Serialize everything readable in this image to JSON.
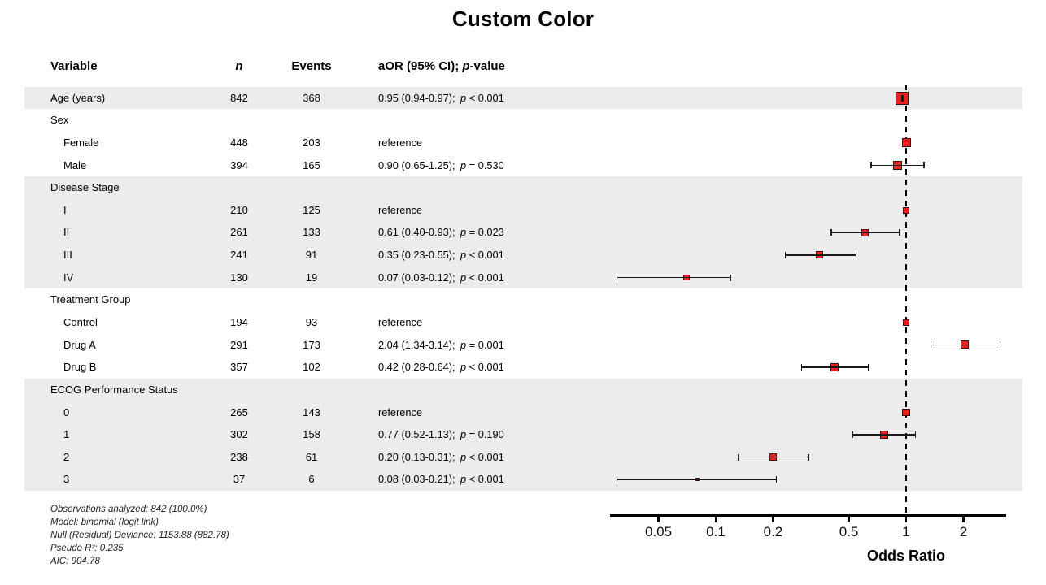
{
  "title": "Custom Color",
  "header": {
    "variable": "Variable",
    "n": "n",
    "events": "Events",
    "aor_prefix": "aOR (95% CI); ",
    "p_symbol": "p",
    "aor_suffix": "-value"
  },
  "colors": {
    "marker_fill": "#ea2120",
    "marker_border": "#3c0d0d",
    "whisker": "#1a1a1a",
    "band": "#ececec"
  },
  "chart_data": {
    "type": "scatter",
    "variant": "forest-plot",
    "title": "Custom Color",
    "xlabel": "Odds Ratio",
    "xscale": "log",
    "xlim": [
      0.0275,
      3.3
    ],
    "reference_line": 1,
    "ticks": {
      "values": [
        0.05,
        0.1,
        0.2,
        0.5,
        1,
        2
      ],
      "labels": [
        "0.05",
        "0.1",
        "0.2",
        "0.5",
        "1",
        "2"
      ]
    },
    "rows": [
      {
        "label": "Age (years)",
        "indent": 0,
        "band": true,
        "n": "842",
        "events": "368",
        "est": "0.95 (0.94-0.97);",
        "p": " < 0.001",
        "or": 0.95,
        "lo": 0.94,
        "hi": 0.97,
        "size": 16
      },
      {
        "label": "Sex",
        "indent": 0,
        "band": false
      },
      {
        "label": "Female",
        "indent": 1,
        "band": false,
        "n": "448",
        "events": "203",
        "est": "reference",
        "or": 1,
        "size": 11
      },
      {
        "label": "Male",
        "indent": 1,
        "band": false,
        "n": "394",
        "events": "165",
        "est": "0.90 (0.65-1.25);",
        "p": " = 0.530",
        "or": 0.9,
        "lo": 0.65,
        "hi": 1.25,
        "size": 10.5
      },
      {
        "label": "Disease Stage",
        "indent": 0,
        "band": true
      },
      {
        "label": "I",
        "indent": 1,
        "band": true,
        "n": "210",
        "events": "125",
        "est": "reference",
        "or": 1,
        "size": 8
      },
      {
        "label": "II",
        "indent": 1,
        "band": true,
        "n": "261",
        "events": "133",
        "est": "0.61 (0.40-0.93);",
        "p": " = 0.023",
        "or": 0.61,
        "lo": 0.4,
        "hi": 0.93,
        "size": 9
      },
      {
        "label": "III",
        "indent": 1,
        "band": true,
        "n": "241",
        "events": "91",
        "est": "0.35 (0.23-0.55);",
        "p": " < 0.001",
        "or": 0.35,
        "lo": 0.23,
        "hi": 0.55,
        "size": 9
      },
      {
        "label": "IV",
        "indent": 1,
        "band": true,
        "n": "130",
        "events": "19",
        "est": "0.07 (0.03-0.12);",
        "p": " < 0.001",
        "or": 0.07,
        "lo": 0.03,
        "hi": 0.12,
        "size": 7.5
      },
      {
        "label": "Treatment Group",
        "indent": 0,
        "band": false
      },
      {
        "label": "Control",
        "indent": 1,
        "band": false,
        "n": "194",
        "events": "93",
        "est": "reference",
        "or": 1,
        "size": 8
      },
      {
        "label": "Drug A",
        "indent": 1,
        "band": false,
        "n": "291",
        "events": "173",
        "est": "2.04 (1.34-3.14);",
        "p": " = 0.001",
        "or": 2.04,
        "lo": 1.34,
        "hi": 3.14,
        "size": 10
      },
      {
        "label": "Drug B",
        "indent": 1,
        "band": false,
        "n": "357",
        "events": "102",
        "est": "0.42 (0.28-0.64);",
        "p": " < 0.001",
        "or": 0.42,
        "lo": 0.28,
        "hi": 0.64,
        "size": 10.5
      },
      {
        "label": "ECOG Performance Status",
        "indent": 0,
        "band": true
      },
      {
        "label": "0",
        "indent": 1,
        "band": true,
        "n": "265",
        "events": "143",
        "est": "reference",
        "or": 1,
        "size": 9.5
      },
      {
        "label": "1",
        "indent": 1,
        "band": true,
        "n": "302",
        "events": "158",
        "est": "0.77 (0.52-1.13);",
        "p": " = 0.190",
        "or": 0.77,
        "lo": 0.52,
        "hi": 1.13,
        "size": 10
      },
      {
        "label": "2",
        "indent": 1,
        "band": true,
        "n": "238",
        "events": "61",
        "est": "0.20 (0.13-0.31);",
        "p": " < 0.001",
        "or": 0.2,
        "lo": 0.13,
        "hi": 0.31,
        "size": 9.5
      },
      {
        "label": "3",
        "indent": 1,
        "band": true,
        "n": "37",
        "events": "6",
        "est": "0.08 (0.03-0.21);",
        "p": " < 0.001",
        "or": 0.08,
        "lo": 0.03,
        "hi": 0.21,
        "size": 4.5
      }
    ]
  },
  "footnotes": [
    "Observations analyzed: 842 (100.0%)",
    "Model: binomial (logit link)",
    "Null (Residual) Deviance: 1153.88 (882.78)",
    "Pseudo R²: 0.235",
    "AIC: 904.78"
  ]
}
